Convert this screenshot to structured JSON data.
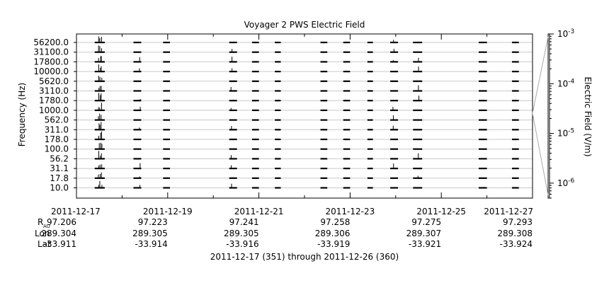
{
  "chart_data": {
    "type": "line",
    "title": "Voyager 2 PWS Electric Field",
    "ylabel": "Frequency (Hz)",
    "y2label": "Electric Field (V/m)",
    "subtitle": "2011-12-17 (351) through 2011-12-26 (360)",
    "channels": [
      "56200.0",
      "31100.0",
      "17800.0",
      "10000.0",
      "5620.0",
      "3110.0",
      "1780.0",
      "1000.0",
      "562.0",
      "311.0",
      "178.0",
      "100.0",
      "56.2",
      "31.1",
      "17.8",
      "10.0"
    ],
    "x_tick_labels": [
      "2011-12-17",
      "2011-12-19",
      "2011-12-21",
      "2011-12-23",
      "2011-12-25",
      "2011-12-27"
    ],
    "xlim_days": [
      0,
      10
    ],
    "y2_scale": "log",
    "y2lim": [
      5e-07,
      0.001
    ],
    "y2_tick_labels": [
      {
        "value": 0.001,
        "mantissa": "10",
        "exp": "-3"
      },
      {
        "value": 0.0001,
        "mantissa": "10",
        "exp": "-4"
      },
      {
        "value": 1e-05,
        "mantissa": "10",
        "exp": "-5"
      },
      {
        "value": 1e-06,
        "mantissa": "10",
        "exp": "-6"
      }
    ],
    "grid": "horizontal",
    "data_segments_days": [
      [
        0.4,
        0.62
      ],
      [
        1.25,
        1.42
      ],
      [
        1.9,
        2.05
      ],
      [
        3.35,
        3.52
      ],
      [
        3.85,
        4.0
      ],
      [
        4.35,
        4.48
      ],
      [
        5.35,
        5.5
      ],
      [
        5.85,
        6.0
      ],
      [
        6.38,
        6.5
      ],
      [
        6.88,
        7.05
      ],
      [
        7.38,
        7.58
      ],
      [
        8.82,
        9.0
      ],
      [
        9.55,
        9.7
      ]
    ],
    "bursts_day": [
      0.49,
      0.52,
      0.55,
      1.39,
      6.95,
      3.4,
      7.5
    ],
    "ephemeris": {
      "row_labels": {
        "r": "R",
        "r_sub": "AU",
        "lon": "Lon",
        "lat": "Lat"
      },
      "columns": [
        {
          "date": "2011-12-17",
          "r": "97.206",
          "lon": "289.304",
          "lat": "-33.911"
        },
        {
          "date": "2011-12-19",
          "r": "97.223",
          "lon": "289.305",
          "lat": "-33.914"
        },
        {
          "date": "2011-12-21",
          "r": "97.241",
          "lon": "289.305",
          "lat": "-33.916"
        },
        {
          "date": "2011-12-23",
          "r": "97.258",
          "lon": "289.306",
          "lat": "-33.919"
        },
        {
          "date": "2011-12-25",
          "r": "97.275",
          "lon": "289.307",
          "lat": "-33.921"
        },
        {
          "date": "2011-12-27",
          "r": "97.293",
          "lon": "289.308",
          "lat": "-33.924"
        }
      ]
    },
    "colors": {
      "trace": "#000000",
      "grid": "#c8c8c8",
      "axis": "#000000",
      "connector": "#aaaaaa"
    }
  }
}
